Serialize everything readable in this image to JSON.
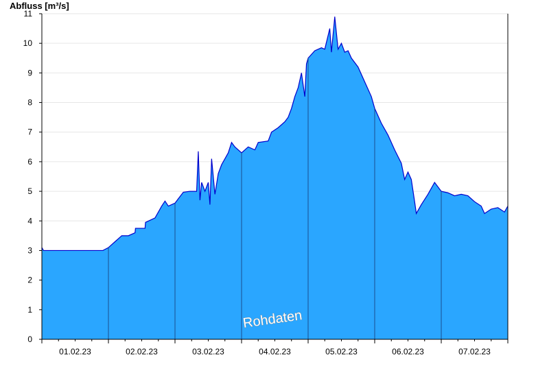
{
  "colors": {
    "area_fill": "#2aa6ff",
    "line": "#0000cc",
    "day_separator": "#1a4d8f",
    "grid": "#e6e6e6",
    "axis": "#000000"
  },
  "chart_data": {
    "type": "area",
    "ylabel": "Abfluss [m³/s]",
    "ylim": [
      0,
      11
    ],
    "yticks": [
      0,
      1,
      2,
      3,
      4,
      5,
      6,
      7,
      8,
      9,
      10,
      11
    ],
    "x_unit": "days",
    "xlim": [
      "2023-02-01T00:00",
      "2023-02-08T00:00"
    ],
    "xticks": [
      "01.02.23",
      "02.02.23",
      "03.02.23",
      "04.02.23",
      "05.02.23",
      "06.02.23",
      "07.02.23"
    ],
    "grid": true,
    "watermark": "Rohdaten",
    "series": [
      {
        "values": [
          [
            "2023-02-01T00:00",
            3.1
          ],
          [
            "2023-02-01T00:36",
            3.0
          ],
          [
            "2023-02-01T06:00",
            3.0
          ],
          [
            "2023-02-01T12:00",
            3.0
          ],
          [
            "2023-02-01T18:00",
            3.0
          ],
          [
            "2023-02-01T22:00",
            3.0
          ],
          [
            "2023-02-02T00:00",
            3.1
          ],
          [
            "2023-02-02T01:12",
            3.2
          ],
          [
            "2023-02-02T02:24",
            3.3
          ],
          [
            "2023-02-02T03:36",
            3.4
          ],
          [
            "2023-02-02T04:48",
            3.5
          ],
          [
            "2023-02-02T07:12",
            3.5
          ],
          [
            "2023-02-02T09:36",
            3.6
          ],
          [
            "2023-02-02T09:45",
            3.75
          ],
          [
            "2023-02-02T13:12",
            3.75
          ],
          [
            "2023-02-02T13:22",
            3.95
          ],
          [
            "2023-02-02T16:48",
            4.1
          ],
          [
            "2023-02-02T19:12",
            4.5
          ],
          [
            "2023-02-02T20:24",
            4.67
          ],
          [
            "2023-02-02T21:36",
            4.5
          ],
          [
            "2023-02-03T00:00",
            4.6
          ],
          [
            "2023-02-03T01:12",
            4.75
          ],
          [
            "2023-02-03T03:00",
            4.97
          ],
          [
            "2023-02-03T05:24",
            5.0
          ],
          [
            "2023-02-03T07:48",
            5.0
          ],
          [
            "2023-02-03T08:24",
            6.35
          ],
          [
            "2023-02-03T09:00",
            4.7
          ],
          [
            "2023-02-03T09:36",
            5.3
          ],
          [
            "2023-02-03T10:48",
            5.0
          ],
          [
            "2023-02-03T12:00",
            5.3
          ],
          [
            "2023-02-03T12:36",
            4.55
          ],
          [
            "2023-02-03T13:12",
            6.1
          ],
          [
            "2023-02-03T14:24",
            4.9
          ],
          [
            "2023-02-03T15:36",
            5.6
          ],
          [
            "2023-02-03T16:48",
            5.9
          ],
          [
            "2023-02-03T19:12",
            6.3
          ],
          [
            "2023-02-03T20:24",
            6.65
          ],
          [
            "2023-02-03T21:36",
            6.5
          ],
          [
            "2023-02-04T00:00",
            6.3
          ],
          [
            "2023-02-04T02:24",
            6.5
          ],
          [
            "2023-02-04T04:48",
            6.4
          ],
          [
            "2023-02-04T06:00",
            6.65
          ],
          [
            "2023-02-04T09:36",
            6.7
          ],
          [
            "2023-02-04T10:48",
            7.0
          ],
          [
            "2023-02-04T13:12",
            7.15
          ],
          [
            "2023-02-04T15:36",
            7.35
          ],
          [
            "2023-02-04T16:48",
            7.5
          ],
          [
            "2023-02-04T18:00",
            7.8
          ],
          [
            "2023-02-04T19:12",
            8.2
          ],
          [
            "2023-02-04T20:24",
            8.5
          ],
          [
            "2023-02-04T21:36",
            9.0
          ],
          [
            "2023-02-04T22:48",
            8.2
          ],
          [
            "2023-02-04T23:24",
            9.3
          ],
          [
            "2023-02-05T00:00",
            9.5
          ],
          [
            "2023-02-05T02:24",
            9.75
          ],
          [
            "2023-02-05T04:48",
            9.85
          ],
          [
            "2023-02-05T06:00",
            9.8
          ],
          [
            "2023-02-05T07:48",
            10.5
          ],
          [
            "2023-02-05T08:24",
            9.7
          ],
          [
            "2023-02-05T09:36",
            10.9
          ],
          [
            "2023-02-05T10:48",
            9.8
          ],
          [
            "2023-02-05T12:00",
            10.0
          ],
          [
            "2023-02-05T13:12",
            9.7
          ],
          [
            "2023-02-05T14:24",
            9.75
          ],
          [
            "2023-02-05T15:36",
            9.5
          ],
          [
            "2023-02-05T18:00",
            9.2
          ],
          [
            "2023-02-05T20:24",
            8.7
          ],
          [
            "2023-02-05T22:48",
            8.2
          ],
          [
            "2023-02-06T00:00",
            7.8
          ],
          [
            "2023-02-06T02:24",
            7.3
          ],
          [
            "2023-02-06T04:48",
            6.9
          ],
          [
            "2023-02-06T07:12",
            6.4
          ],
          [
            "2023-02-06T09:36",
            5.95
          ],
          [
            "2023-02-06T10:48",
            5.4
          ],
          [
            "2023-02-06T12:00",
            5.65
          ],
          [
            "2023-02-06T13:12",
            5.4
          ],
          [
            "2023-02-06T14:24",
            4.65
          ],
          [
            "2023-02-06T15:00",
            4.25
          ],
          [
            "2023-02-06T16:48",
            4.55
          ],
          [
            "2023-02-06T19:12",
            4.9
          ],
          [
            "2023-02-06T21:36",
            5.3
          ],
          [
            "2023-02-07T00:00",
            5.0
          ],
          [
            "2023-02-07T02:24",
            4.95
          ],
          [
            "2023-02-07T04:48",
            4.85
          ],
          [
            "2023-02-07T07:12",
            4.9
          ],
          [
            "2023-02-07T09:36",
            4.85
          ],
          [
            "2023-02-07T12:00",
            4.65
          ],
          [
            "2023-02-07T14:24",
            4.5
          ],
          [
            "2023-02-07T15:36",
            4.25
          ],
          [
            "2023-02-07T18:00",
            4.4
          ],
          [
            "2023-02-07T20:24",
            4.45
          ],
          [
            "2023-02-07T22:48",
            4.3
          ],
          [
            "2023-02-08T00:00",
            4.5
          ]
        ]
      }
    ]
  }
}
